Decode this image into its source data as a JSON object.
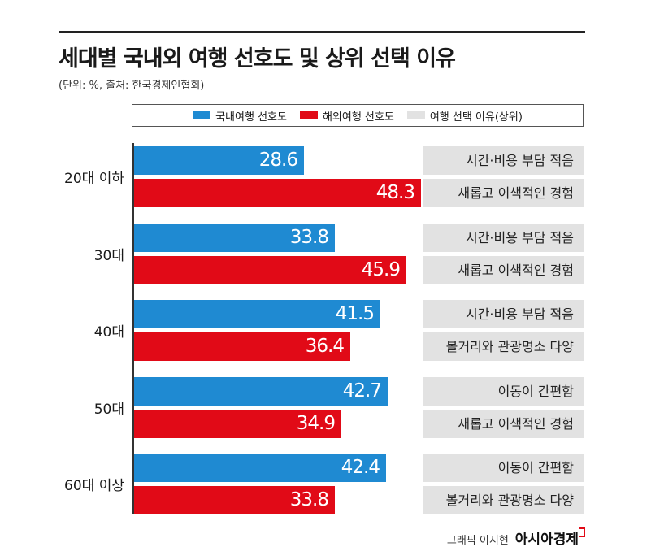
{
  "title": "세대별 국내외 여행 선호도 및 상위 선택 이유",
  "subtitle": "(단위: %, 출처: 한국경제인협회)",
  "legend": {
    "domestic": "국내여행 선호도",
    "overseas": "해외여행 선호도",
    "reason": "여행 선택 이유(상위)"
  },
  "colors": {
    "domestic": "#1f8ad2",
    "overseas": "#e10a17",
    "reason": "#e2e2e2"
  },
  "chart_data": {
    "type": "bar",
    "orientation": "horizontal",
    "title": "세대별 국내외 여행 선호도 및 상위 선택 이유",
    "unit": "%",
    "xlim": [
      0,
      60
    ],
    "categories": [
      "20대 이하",
      "30대",
      "40대",
      "50대",
      "60대 이상"
    ],
    "series": [
      {
        "name": "국내여행 선호도",
        "values": [
          28.6,
          33.8,
          41.5,
          42.7,
          42.4
        ]
      },
      {
        "name": "해외여행 선호도",
        "values": [
          48.3,
          45.9,
          36.4,
          34.9,
          33.8
        ]
      }
    ],
    "reasons": [
      [
        "시간·비용 부담 적음",
        "새롭고 이색적인 경험"
      ],
      [
        "시간·비용 부담 적음",
        "새롭고 이색적인 경험"
      ],
      [
        "시간·비용 부담 적음",
        "볼거리와 관광명소 다양"
      ],
      [
        "이동이 간편함",
        "새롭고 이색적인 경험"
      ],
      [
        "이동이 간편함",
        "볼거리와 관광명소 다양"
      ]
    ]
  },
  "credit": {
    "text": "그래픽 이지현",
    "brand": "아시아경제"
  }
}
